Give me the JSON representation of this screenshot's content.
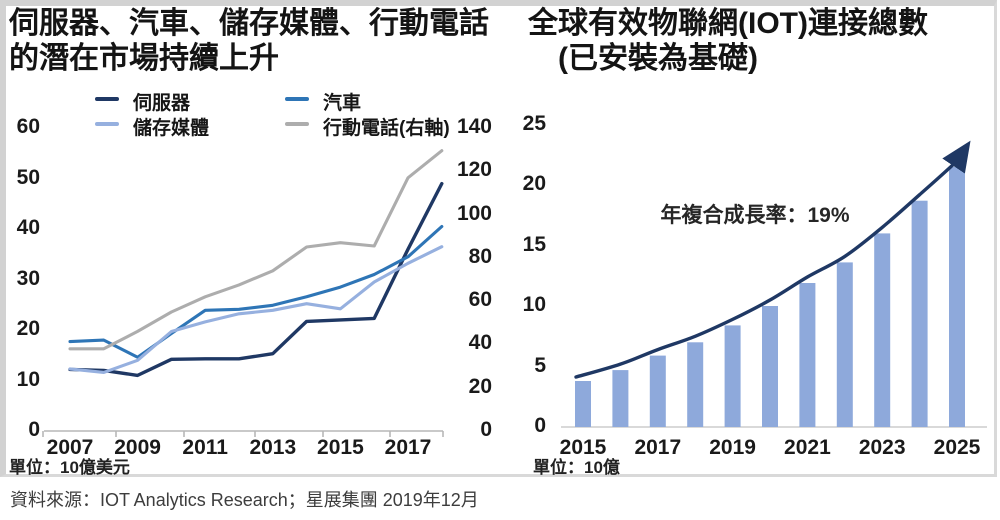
{
  "left_chart": {
    "title_lines": [
      "伺服器、汽車、儲存媒體、行動電話",
      "的潛在市場持續上升"
    ],
    "unit": "單位：10億美元"
  },
  "right_chart": {
    "title_lines": [
      "全球有效物聯網(IOT)連接總數",
      "(已安裝為基礎)"
    ],
    "annotation": "年複合成長率：19%",
    "unit": "單位：10億"
  },
  "source": "資料來源：IOT Analytics Research；星展集團 2019年12月",
  "colors": {
    "server": "#1F3864",
    "auto": "#2E75B6",
    "storage": "#96B0DF",
    "mobile": "#ADADAD",
    "bar": "#8EA9DB",
    "arrow": "#1F3864",
    "axis_line": "#b7b7b7",
    "baseline": "#d9d9d9"
  },
  "chart_data": [
    {
      "type": "line",
      "title": "伺服器、汽車、儲存媒體、行動電話的潛在市場持續上升",
      "unit": "單位：10億美元",
      "x": [
        2007,
        2008,
        2009,
        2010,
        2011,
        2012,
        2013,
        2014,
        2015,
        2016,
        2017,
        2018
      ],
      "xticks": [
        2007,
        2009,
        2011,
        2013,
        2015,
        2017
      ],
      "left_axis": {
        "range": [
          0,
          60
        ],
        "ticks": [
          0,
          10,
          20,
          30,
          40,
          50,
          60
        ]
      },
      "right_axis": {
        "range": [
          0,
          140
        ],
        "ticks": [
          0,
          20,
          40,
          60,
          80,
          100,
          120,
          140
        ]
      },
      "legend_position": "top",
      "grid": false,
      "series": [
        {
          "name": "伺服器",
          "axis": "left",
          "color_key": "server",
          "values": [
            12.2,
            12.0,
            11.0,
            14.2,
            14.3,
            14.3,
            15.3,
            21.7,
            22.0,
            22.3,
            36.0,
            49.0
          ]
        },
        {
          "name": "汽車",
          "axis": "left",
          "color_key": "auto",
          "values": [
            17.7,
            18.0,
            14.6,
            19.3,
            23.9,
            24.1,
            24.9,
            26.6,
            28.5,
            31.0,
            34.5,
            40.5
          ]
        },
        {
          "name": "儲存媒體",
          "axis": "left",
          "color_key": "storage",
          "values": [
            12.3,
            11.6,
            14.0,
            19.7,
            21.6,
            23.2,
            23.9,
            25.2,
            24.2,
            29.5,
            33.2,
            36.5
          ]
        },
        {
          "name": "行動電話(右軸)",
          "axis": "right",
          "color_key": "mobile",
          "values": [
            38,
            38,
            46,
            55,
            62,
            67.5,
            74,
            85,
            87,
            85.5,
            117,
            129.5
          ]
        }
      ]
    },
    {
      "type": "bar",
      "title": "全球有效物聯網(IOT)連接總數(已安裝為基礎)",
      "unit": "單位：10億",
      "categories": [
        2015,
        2016,
        2017,
        2018,
        2019,
        2020,
        2021,
        2022,
        2023,
        2024,
        2025
      ],
      "values": [
        3.8,
        4.7,
        5.9,
        7.0,
        8.4,
        10.0,
        11.9,
        13.6,
        16.0,
        18.7,
        21.5
      ],
      "xticks": [
        2015,
        2017,
        2019,
        2021,
        2023,
        2025
      ],
      "yticks": [
        0,
        5,
        10,
        15,
        20,
        25
      ],
      "ylim": [
        0,
        25
      ],
      "annotation": "年複合成長率：19%",
      "trend_arrow": true,
      "grid": false
    }
  ]
}
